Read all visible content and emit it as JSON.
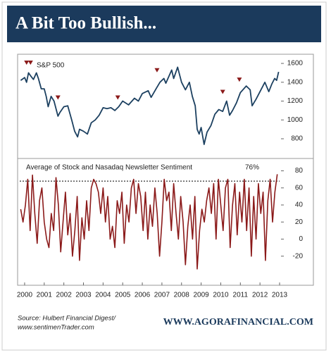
{
  "header": {
    "title": "A Bit Too Bullish..."
  },
  "footer": {
    "source_lines": [
      "Source: Hulbert Financial Digest/",
      "www.sentimenTrader.com"
    ],
    "website": "WWW.AGORAFINANCIAL.COM"
  },
  "chart_data": [
    {
      "type": "line",
      "title": "S&P 500",
      "color": "#1c4060",
      "xlim": [
        1999.75,
        2013
      ],
      "ylim": [
        613,
        1690
      ],
      "yticks": [
        800,
        1000,
        1200,
        1400,
        1600
      ],
      "x": [
        1999.8,
        2000.0,
        2000.1,
        2000.2,
        2000.3,
        2000.45,
        2000.6,
        2000.7,
        2000.85,
        2001.0,
        2001.1,
        2001.2,
        2001.35,
        2001.5,
        2001.7,
        2001.8,
        2002.0,
        2002.2,
        2002.4,
        2002.55,
        2002.7,
        2002.8,
        2003.0,
        2003.2,
        2003.4,
        2003.6,
        2003.8,
        2004.0,
        2004.2,
        2004.4,
        2004.6,
        2004.8,
        2005.0,
        2005.3,
        2005.6,
        2005.8,
        2006.0,
        2006.3,
        2006.45,
        2006.7,
        2006.9,
        2007.1,
        2007.2,
        2007.5,
        2007.6,
        2007.8,
        2008.0,
        2008.2,
        2008.4,
        2008.55,
        2008.7,
        2008.8,
        2008.9,
        2009.0,
        2009.15,
        2009.3,
        2009.5,
        2009.7,
        2009.9,
        2010.1,
        2010.3,
        2010.45,
        2010.6,
        2010.8,
        2011.0,
        2011.3,
        2011.5,
        2011.6,
        2011.8,
        2012.0,
        2012.25,
        2012.45,
        2012.6,
        2012.75,
        2012.85,
        2012.95
      ],
      "values": [
        1420,
        1450,
        1400,
        1500,
        1470,
        1430,
        1500,
        1440,
        1330,
        1330,
        1250,
        1140,
        1250,
        1200,
        1040,
        1080,
        1140,
        1150,
        1000,
        880,
        820,
        900,
        880,
        850,
        970,
        1000,
        1050,
        1130,
        1120,
        1130,
        1100,
        1140,
        1200,
        1160,
        1230,
        1200,
        1280,
        1310,
        1240,
        1330,
        1400,
        1440,
        1390,
        1530,
        1440,
        1560,
        1400,
        1320,
        1400,
        1250,
        1150,
        900,
        850,
        920,
        740,
        870,
        940,
        1060,
        1110,
        1090,
        1200,
        1050,
        1100,
        1180,
        1290,
        1360,
        1320,
        1150,
        1220,
        1300,
        1400,
        1300,
        1380,
        1440,
        1420,
        1510
      ],
      "markers": {
        "color": "#8b1a1a",
        "x": [
          2000.1,
          2000.3,
          2001.7,
          2004.75,
          2006.75,
          2010.1,
          2010.95
        ],
        "y": [
          1600,
          1600,
          1230,
          1230,
          1520,
          1290,
          1420
        ]
      }
    },
    {
      "type": "line",
      "title": "Average of Stock and Nasadaq Newsletter Sentiment",
      "annotation": "76%",
      "color": "#8b1a1a",
      "xlim": [
        1999.75,
        2013
      ],
      "ylim": [
        -50,
        92
      ],
      "yticks": [
        -20,
        0,
        20,
        40,
        60,
        80
      ],
      "xticks": [
        2000,
        2001,
        2002,
        2003,
        2004,
        2005,
        2006,
        2007,
        2008,
        2009,
        2010,
        2011,
        2012,
        2013
      ],
      "reference_line": 68,
      "x": [
        1999.8,
        1999.92,
        2000.04,
        2000.16,
        2000.28,
        2000.4,
        2000.52,
        2000.64,
        2000.76,
        2000.88,
        2001,
        2001.12,
        2001.24,
        2001.36,
        2001.48,
        2001.6,
        2001.72,
        2001.84,
        2001.96,
        2002.08,
        2002.2,
        2002.32,
        2002.44,
        2002.56,
        2002.68,
        2002.8,
        2002.92,
        2003.04,
        2003.16,
        2003.28,
        2003.4,
        2003.52,
        2003.64,
        2003.76,
        2003.88,
        2004,
        2004.12,
        2004.24,
        2004.36,
        2004.48,
        2004.6,
        2004.72,
        2004.84,
        2004.96,
        2005.08,
        2005.2,
        2005.32,
        2005.44,
        2005.56,
        2005.68,
        2005.8,
        2005.92,
        2006.04,
        2006.16,
        2006.28,
        2006.4,
        2006.52,
        2006.64,
        2006.76,
        2006.88,
        2007,
        2007.12,
        2007.24,
        2007.36,
        2007.48,
        2007.6,
        2007.72,
        2007.84,
        2007.96,
        2008.08,
        2008.2,
        2008.32,
        2008.44,
        2008.56,
        2008.68,
        2008.8,
        2008.92,
        2009.04,
        2009.16,
        2009.28,
        2009.4,
        2009.52,
        2009.64,
        2009.76,
        2009.88,
        2010,
        2010.12,
        2010.24,
        2010.36,
        2010.48,
        2010.6,
        2010.72,
        2010.84,
        2010.96,
        2011.08,
        2011.2,
        2011.32,
        2011.44,
        2011.56,
        2011.68,
        2011.8,
        2011.92,
        2012.04,
        2012.16,
        2012.28,
        2012.4,
        2012.52,
        2012.64,
        2012.76,
        2012.88
      ],
      "values": [
        35,
        20,
        40,
        70,
        10,
        75,
        30,
        -5,
        45,
        60,
        20,
        0,
        -10,
        30,
        10,
        72,
        40,
        -15,
        20,
        55,
        5,
        30,
        -20,
        10,
        50,
        -25,
        25,
        0,
        45,
        10,
        60,
        70,
        65,
        55,
        30,
        60,
        20,
        50,
        0,
        15,
        -10,
        45,
        30,
        55,
        -5,
        40,
        20,
        60,
        70,
        30,
        65,
        50,
        10,
        55,
        0,
        40,
        15,
        60,
        30,
        -20,
        20,
        70,
        45,
        55,
        10,
        65,
        30,
        0,
        50,
        20,
        -30,
        15,
        40,
        0,
        50,
        -35,
        10,
        35,
        20,
        45,
        60,
        30,
        65,
        0,
        70,
        40,
        10,
        60,
        70,
        -10,
        40,
        65,
        5,
        55,
        20,
        70,
        10,
        60,
        -20,
        50,
        0,
        65,
        30,
        55,
        -25,
        45,
        70,
        20,
        55,
        76
      ]
    }
  ]
}
